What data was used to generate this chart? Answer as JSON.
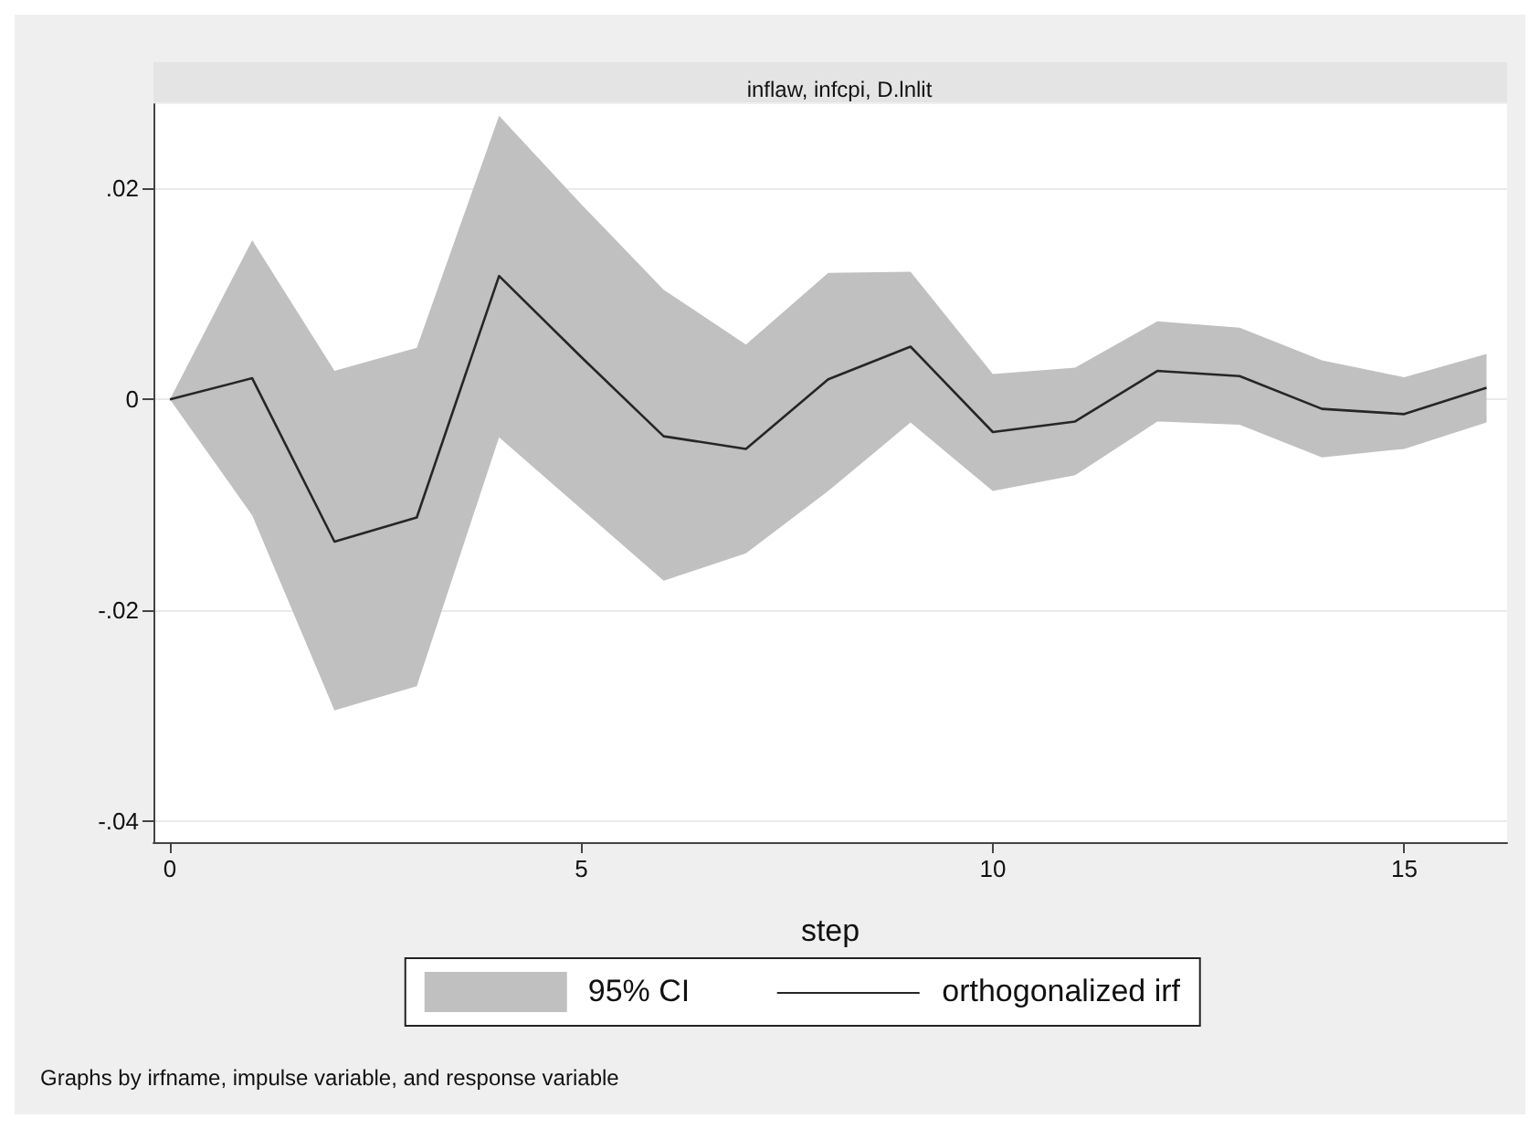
{
  "chart_data": {
    "type": "line",
    "title": "inflaw, infcpi, D.lnlit",
    "xlabel": "step",
    "x": [
      0,
      1,
      2,
      3,
      4,
      5,
      6,
      7,
      8,
      9,
      10,
      11,
      12,
      13,
      14,
      15,
      16
    ],
    "series": [
      {
        "name": "orthogonalized irf",
        "color": "#262626",
        "values": [
          0,
          0.002,
          -0.0135,
          -0.0112,
          0.0117,
          0.004,
          -0.0035,
          -0.0047,
          0.0019,
          0.005,
          -0.0031,
          -0.0021,
          0.0027,
          0.0022,
          -0.0009,
          -0.0014,
          0.0011
        ],
        "lower": [
          0,
          -0.011,
          -0.0295,
          -0.0272,
          -0.0036,
          -0.0104,
          -0.0172,
          -0.0146,
          -0.0087,
          -0.0022,
          -0.0087,
          -0.0072,
          -0.0021,
          -0.0024,
          -0.0055,
          -0.0047,
          -0.0022
        ],
        "upper": [
          0,
          0.0151,
          0.0027,
          0.0049,
          0.0269,
          0.0185,
          0.0104,
          0.0052,
          0.012,
          0.0121,
          0.0024,
          0.003,
          0.0074,
          0.0068,
          0.0037,
          0.0021,
          0.0043
        ]
      }
    ],
    "xlim": [
      -0.2,
      16.25
    ],
    "xticks": [
      0,
      5,
      10,
      15
    ],
    "ylim": [
      -0.042,
      0.028
    ],
    "yticks": [
      {
        "value": -0.04,
        "label": "-.04"
      },
      {
        "value": -0.02,
        "label": "-.02"
      },
      {
        "value": 0,
        "label": "0"
      },
      {
        "value": 0.02,
        "label": ".02"
      }
    ],
    "grid": "y",
    "legend": "bottom",
    "marker": "none",
    "line_style": "solid",
    "annotations": [
      "95% CI",
      "Graphs by irfname, impulse variable, and response variable"
    ]
  }
}
